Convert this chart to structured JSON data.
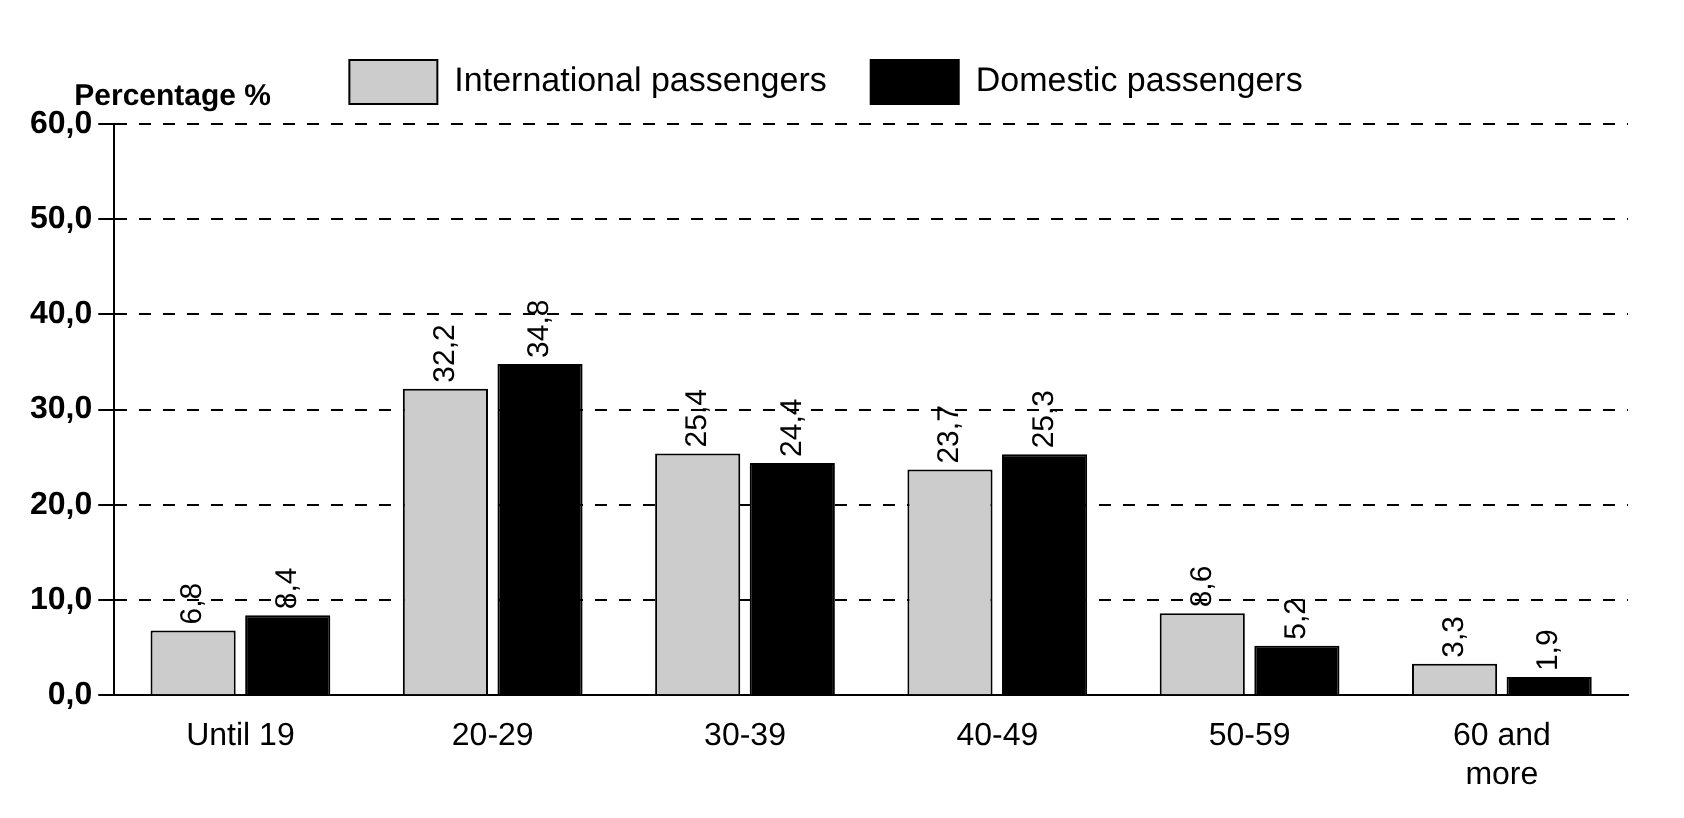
{
  "chart_data": {
    "type": "bar",
    "ylabel": "Percentage %",
    "categories": [
      "Until 19",
      "20-29",
      "30-39",
      "40-49",
      "50-59",
      "60 and more"
    ],
    "series": [
      {
        "name": "International passengers",
        "color": "#cccccc",
        "values": [
          6.8,
          32.2,
          25.4,
          23.7,
          8.6,
          3.3
        ],
        "value_labels": [
          "6,8",
          "32,2",
          "25,4",
          "23,7",
          "8,6",
          "3,3"
        ]
      },
      {
        "name": "Domestic passengers",
        "color": "#000000",
        "values": [
          8.4,
          34.8,
          24.4,
          25.3,
          5.2,
          1.9
        ],
        "value_labels": [
          "8,4",
          "34,8",
          "24,4",
          "25,3",
          "5,2",
          "1,9"
        ]
      }
    ],
    "ylim": [
      0,
      60
    ],
    "yticks": [
      {
        "value": 0,
        "label": "0,0"
      },
      {
        "value": 10,
        "label": "10,0"
      },
      {
        "value": 20,
        "label": "20,0"
      },
      {
        "value": 30,
        "label": "30,0"
      },
      {
        "value": 40,
        "label": "40,0"
      },
      {
        "value": 50,
        "label": "50,0"
      },
      {
        "value": 60,
        "label": "60,0"
      }
    ],
    "grid": "y",
    "legend": "top"
  }
}
